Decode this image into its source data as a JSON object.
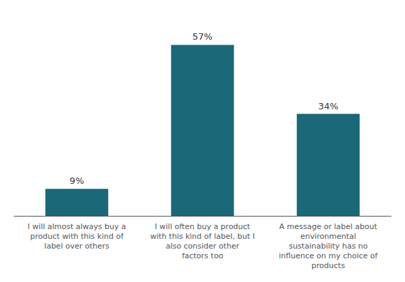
{
  "chart_data": {
    "type": "bar",
    "categories": [
      "I will almost always buy a\nproduct with this kind of\nlabel over others",
      "I will often buy a product\nwith this kind of label, but I\nalso consider other\nfactors too",
      "A message or label about\nenvironmental\nsustainability has no\ninfluence on my choice of\nproducts"
    ],
    "values": [
      9,
      57,
      34
    ],
    "value_labels": [
      "9%",
      "57%",
      "34%"
    ],
    "color": "#1a6878",
    "ylim": [
      0,
      65
    ],
    "grid": false,
    "data_labels": true,
    "tick_labels": "x"
  }
}
